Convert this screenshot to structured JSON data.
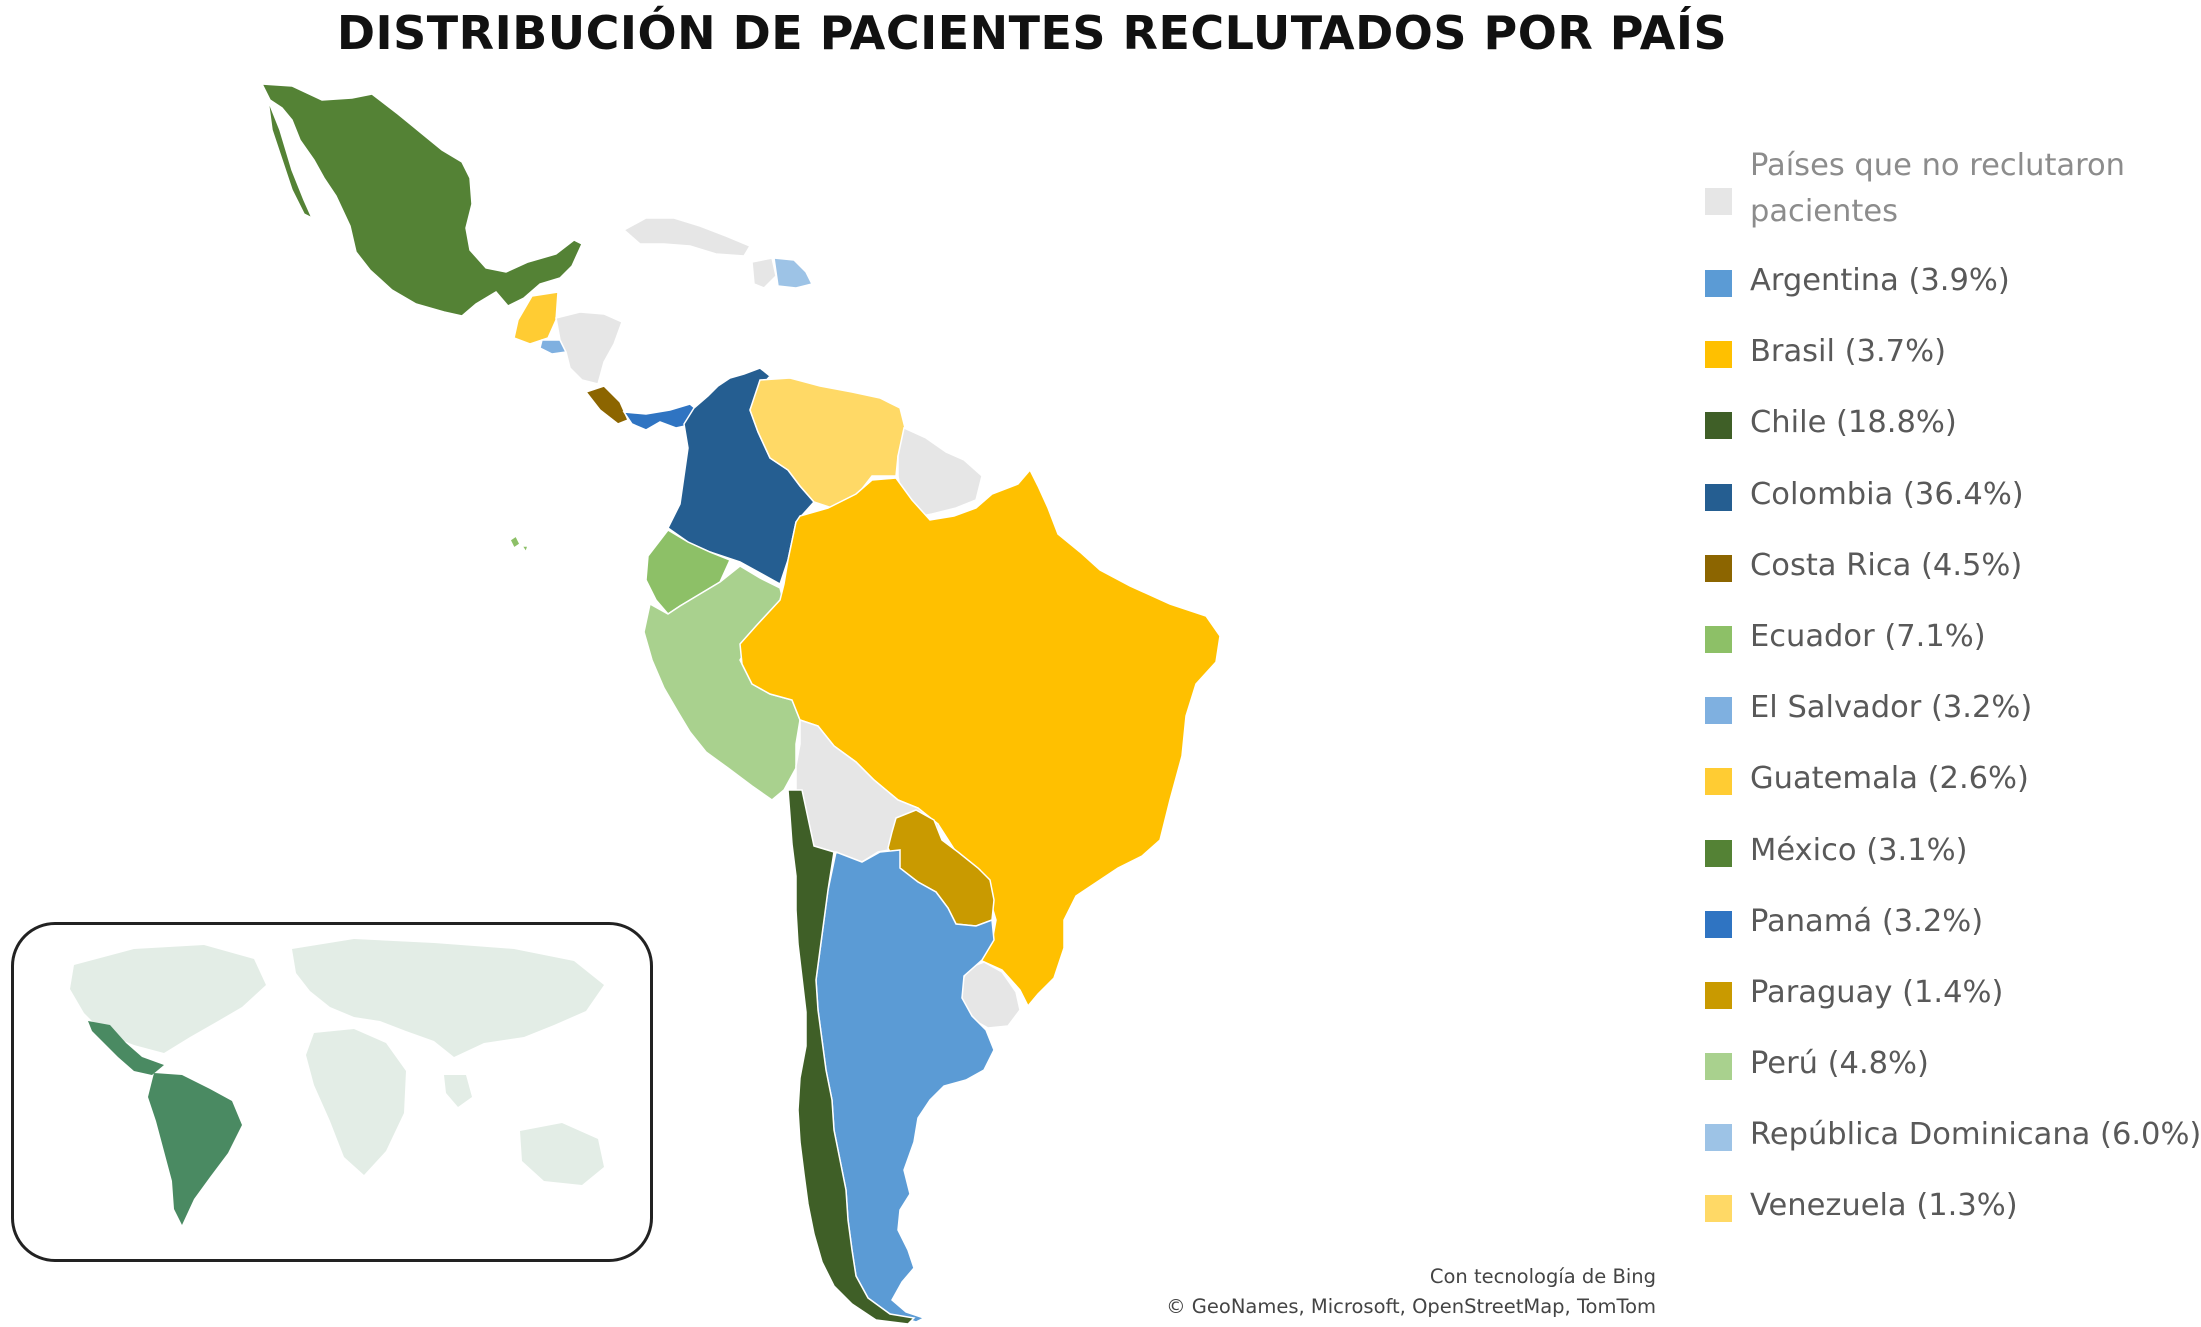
{
  "title": "DISTRIBUCIÓN DE PACIENTES RECLUTADOS POR PAÍS",
  "colors": {
    "no_recruitment": "#e6e6e6",
    "argentina": "#5b9bd5",
    "brasil": "#ffc000",
    "chile": "#3f5f27",
    "colombia": "#255e91",
    "costa_rica": "#8c6500",
    "ecuador": "#8dc067",
    "el_salvador": "#7fb0e0",
    "guatemala": "#ffcc33",
    "mexico": "#548235",
    "panama": "#2f74c2",
    "paraguay": "#c99a00",
    "peru": "#a9d18e",
    "republica_dominicana": "#9dc3e6",
    "venezuela": "#ffd966",
    "inset_world": "#e3ede6",
    "inset_highlight": "#4a8a62"
  },
  "legend": [
    {
      "key": "no_recruitment",
      "label": "Países que no reclutaron pacientes"
    },
    {
      "key": "argentina",
      "label": "Argentina (3.9%)"
    },
    {
      "key": "brasil",
      "label": "Brasil (3.7%)"
    },
    {
      "key": "chile",
      "label": "Chile (18.8%)"
    },
    {
      "key": "colombia",
      "label": "Colombia (36.4%)"
    },
    {
      "key": "costa_rica",
      "label": "Costa Rica (4.5%)"
    },
    {
      "key": "ecuador",
      "label": "Ecuador (7.1%)"
    },
    {
      "key": "el_salvador",
      "label": "El Salvador (3.2%)"
    },
    {
      "key": "guatemala",
      "label": "Guatemala (2.6%)"
    },
    {
      "key": "mexico",
      "label": "México (3.1%)"
    },
    {
      "key": "panama",
      "label": "Panamá (3.2%)"
    },
    {
      "key": "paraguay",
      "label": "Paraguay (1.4%)"
    },
    {
      "key": "peru",
      "label": "Perú (4.8%)"
    },
    {
      "key": "republica_dominicana",
      "label": "República Dominicana (6.0%)"
    },
    {
      "key": "venezuela",
      "label": "Venezuela (1.3%)"
    }
  ],
  "credits": {
    "line1": "Con tecnología de Bing",
    "line2": "© GeoNames, Microsoft, OpenStreetMap, TomTom"
  }
}
